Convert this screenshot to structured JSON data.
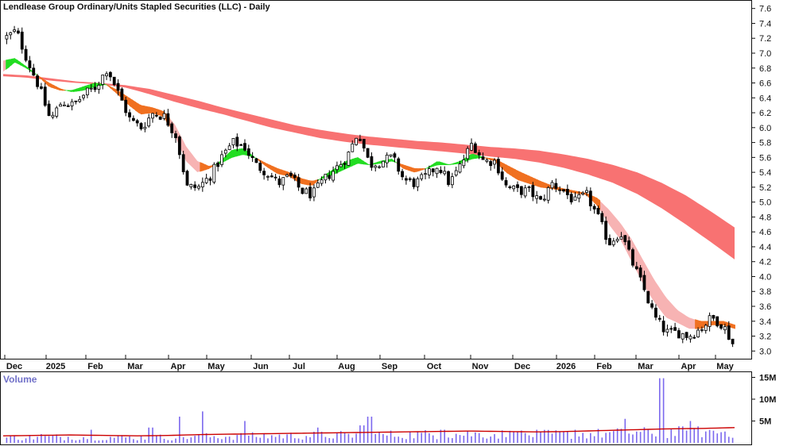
{
  "title": "Lendlease Group Ordinary/Units Stapled Securities (LLC) - Daily",
  "volume_label": "Volume",
  "chart_data": [
    {
      "type": "candlestick",
      "title": "Lendlease Group Ordinary/Units Stapled Securities (LLC) - Daily",
      "x_tick_labels": [
        "Dec",
        "2025",
        "Feb",
        "Mar",
        "Apr",
        "May",
        "Jun",
        "Jul",
        "Aug",
        "Sep",
        "Oct",
        "Nov",
        "Dec",
        "2026",
        "Feb",
        "Mar",
        "Apr",
        "May"
      ],
      "y_tick_labels": [
        "3.0",
        "3.2",
        "3.4",
        "3.6",
        "3.8",
        "4.0",
        "4.2",
        "4.4",
        "4.6",
        "4.8",
        "5.0",
        "5.2",
        "5.4",
        "5.6",
        "5.8",
        "6.0",
        "6.2",
        "6.4",
        "6.6",
        "6.8",
        "7.0",
        "7.2",
        "7.4",
        "7.6"
      ],
      "ylim": [
        2.95,
        7.65
      ],
      "grid": false,
      "axis_position": "right",
      "price_anchors": [
        7.2,
        7.3,
        6.9,
        6.55,
        6.1,
        6.35,
        6.3,
        6.45,
        6.55,
        6.8,
        6.45,
        6.1,
        6.0,
        6.2,
        6.15,
        5.9,
        5.2,
        5.2,
        5.35,
        5.6,
        5.8,
        5.75,
        5.5,
        5.4,
        5.25,
        5.35,
        5.15,
        5.1,
        5.3,
        5.45,
        5.6,
        5.95,
        5.5,
        5.55,
        5.6,
        5.3,
        5.25,
        5.35,
        5.5,
        5.25,
        5.5,
        5.8,
        5.55,
        5.55,
        5.2,
        5.15,
        5.15,
        5.0,
        5.25,
        5.15,
        5.0,
        5.1,
        4.8,
        4.45,
        4.6,
        4.2,
        3.85,
        3.45,
        3.25,
        3.25,
        3.2,
        3.3,
        3.45,
        3.35,
        3.05
      ],
      "ema_short_band": {
        "fast": [
          6.9,
          6.93,
          6.82,
          6.7,
          6.55,
          6.5,
          6.5,
          6.55,
          6.6,
          6.58,
          6.45,
          6.3,
          6.18,
          6.2,
          6.15,
          5.9,
          5.55,
          5.4,
          5.45,
          5.55,
          5.7,
          5.72,
          5.6,
          5.48,
          5.38,
          5.35,
          5.25,
          5.22,
          5.35,
          5.45,
          5.55,
          5.6,
          5.5,
          5.55,
          5.58,
          5.45,
          5.4,
          5.45,
          5.55,
          5.5,
          5.55,
          5.65,
          5.6,
          5.55,
          5.4,
          5.3,
          5.25,
          5.2,
          5.18,
          5.15,
          5.12,
          5.1,
          4.95,
          4.7,
          4.5,
          4.2,
          3.9,
          3.65,
          3.45,
          3.38,
          3.3,
          3.3,
          3.35,
          3.35,
          3.3
        ],
        "slow": [
          6.75,
          6.88,
          6.8,
          6.7,
          6.6,
          6.52,
          6.48,
          6.5,
          6.55,
          6.58,
          6.5,
          6.4,
          6.3,
          6.27,
          6.22,
          6.05,
          5.75,
          5.55,
          5.48,
          5.52,
          5.6,
          5.64,
          5.6,
          5.52,
          5.45,
          5.4,
          5.32,
          5.28,
          5.32,
          5.38,
          5.45,
          5.52,
          5.5,
          5.52,
          5.55,
          5.5,
          5.45,
          5.45,
          5.5,
          5.5,
          5.52,
          5.58,
          5.6,
          5.58,
          5.5,
          5.42,
          5.35,
          5.28,
          5.22,
          5.18,
          5.15,
          5.12,
          5.05,
          4.9,
          4.72,
          4.5,
          4.22,
          3.95,
          3.72,
          3.55,
          3.45,
          3.4,
          3.4,
          3.4,
          3.35
        ]
      },
      "ema_long_band": {
        "upper": [
          6.72,
          6.7,
          6.66,
          6.62,
          6.6,
          6.57,
          6.52,
          6.44,
          6.36,
          6.27,
          6.19,
          6.11,
          6.03,
          5.97,
          5.92,
          5.88,
          5.85,
          5.82,
          5.8,
          5.77,
          5.74,
          5.72,
          5.69,
          5.64,
          5.58,
          5.5,
          5.4,
          5.26,
          5.09,
          4.88,
          4.66
        ],
        "lower": [
          6.69,
          6.67,
          6.63,
          6.6,
          6.58,
          6.54,
          6.45,
          6.35,
          6.26,
          6.18,
          6.09,
          6.0,
          5.93,
          5.86,
          5.81,
          5.77,
          5.74,
          5.71,
          5.68,
          5.65,
          5.61,
          5.58,
          5.53,
          5.46,
          5.37,
          5.26,
          5.11,
          4.92,
          4.7,
          4.47,
          4.23
        ]
      },
      "colors": {
        "bull": "#ffffff",
        "bear": "#000000",
        "short_band": "#f7b3b3",
        "long_band": "#f87272",
        "cross_up": "#22dd22",
        "cross_down": "#f07020"
      }
    },
    {
      "type": "bar",
      "title": "Volume",
      "y_tick_labels": [
        "5M",
        "10M",
        "15M"
      ],
      "ylim": [
        0,
        16
      ],
      "unit": "M",
      "baseline_level": [
        1.6,
        1.7,
        1.8,
        1.7,
        1.6,
        1.7,
        1.9,
        2.0,
        2.1,
        2.2,
        2.3,
        2.4,
        2.5,
        2.6,
        2.7,
        2.6,
        2.5,
        2.6,
        2.8,
        3.0,
        3.2,
        3.3,
        3.5
      ],
      "spikes": [
        [
          0.05,
          2.0
        ],
        [
          0.12,
          3.0
        ],
        [
          0.2,
          3.5
        ],
        [
          0.24,
          6.0
        ],
        [
          0.27,
          7.2
        ],
        [
          0.33,
          5.0
        ],
        [
          0.43,
          3.5
        ],
        [
          0.49,
          4.0
        ],
        [
          0.5,
          6.0
        ],
        [
          0.6,
          3.0
        ],
        [
          0.7,
          2.6
        ],
        [
          0.78,
          3.0
        ],
        [
          0.85,
          5.5
        ],
        [
          0.9,
          14.8
        ],
        [
          0.94,
          5.0
        ]
      ],
      "colors": {
        "bars": "#7b68ee",
        "average": "#cc0000"
      }
    }
  ]
}
